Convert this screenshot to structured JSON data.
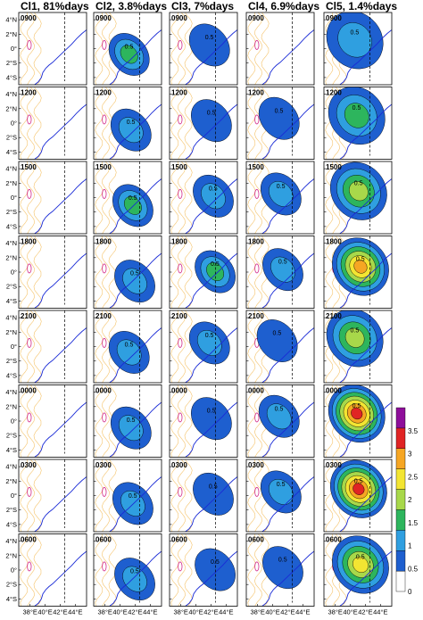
{
  "columns": [
    {
      "label": "Cl1, 81%days"
    },
    {
      "label": "Cl2, 3.8%days"
    },
    {
      "label": "Cl3, 7%days"
    },
    {
      "label": "Cl4, 6.9%days"
    },
    {
      "label": "Cl5, 1.4%days"
    }
  ],
  "rows": [
    {
      "time": "0900"
    },
    {
      "time": "1200"
    },
    {
      "time": "1500"
    },
    {
      "time": "1800"
    },
    {
      "time": "2100"
    },
    {
      "time": "0000"
    },
    {
      "time": "0300"
    },
    {
      "time": "0600"
    }
  ],
  "lat_ticks": [
    "4°N",
    "2°N",
    "0°",
    "2°S",
    "4°S"
  ],
  "lon_ticks": [
    "38°E",
    "40°E",
    "42°E",
    "44°E"
  ],
  "contour_label": "0.5",
  "colorbar": {
    "ticks": [
      "0",
      "0.5",
      "1",
      "1.5",
      "2",
      "2.5",
      "3",
      "3.5"
    ],
    "colors": [
      "#ffffff",
      "#1e5fcf",
      "#2f9fe0",
      "#2db55d",
      "#a8d84a",
      "#f3e532",
      "#f6a623",
      "#e02424",
      "#8e0e9a"
    ]
  },
  "map_colors": {
    "coastline": "#1a2bd6",
    "topography": "#f5c36a",
    "lake": "#d22a8a",
    "section_line": "#000000"
  },
  "chart_data": {
    "type": "heatmap",
    "rows": [
      "0900",
      "1200",
      "1500",
      "1800",
      "2100",
      "0000",
      "0300",
      "0600"
    ],
    "columns": [
      "Cl1, 81%days",
      "Cl2, 3.8%days",
      "Cl3, 7%days",
      "Cl4, 6.9%days",
      "Cl5, 1.4%days"
    ],
    "lat_range": [
      -5,
      5
    ],
    "lon_range": [
      36.5,
      45.5
    ],
    "colorbar_range": [
      0,
      3.8
    ],
    "intensity": [
      [
        0.0,
        1.3,
        0.6,
        0.0,
        1.0
      ],
      [
        0.0,
        1.2,
        0.7,
        0.2,
        1.3
      ],
      [
        0.0,
        1.4,
        1.0,
        1.2,
        2.0
      ],
      [
        0.0,
        1.2,
        1.3,
        0.8,
        2.8
      ],
      [
        0.0,
        1.0,
        1.1,
        0.7,
        2.2
      ],
      [
        0.0,
        1.1,
        0.6,
        0.9,
        3.5
      ],
      [
        0.0,
        0.9,
        0.6,
        0.8,
        3.6
      ],
      [
        0.0,
        0.9,
        0.3,
        0.3,
        2.6
      ]
    ]
  }
}
